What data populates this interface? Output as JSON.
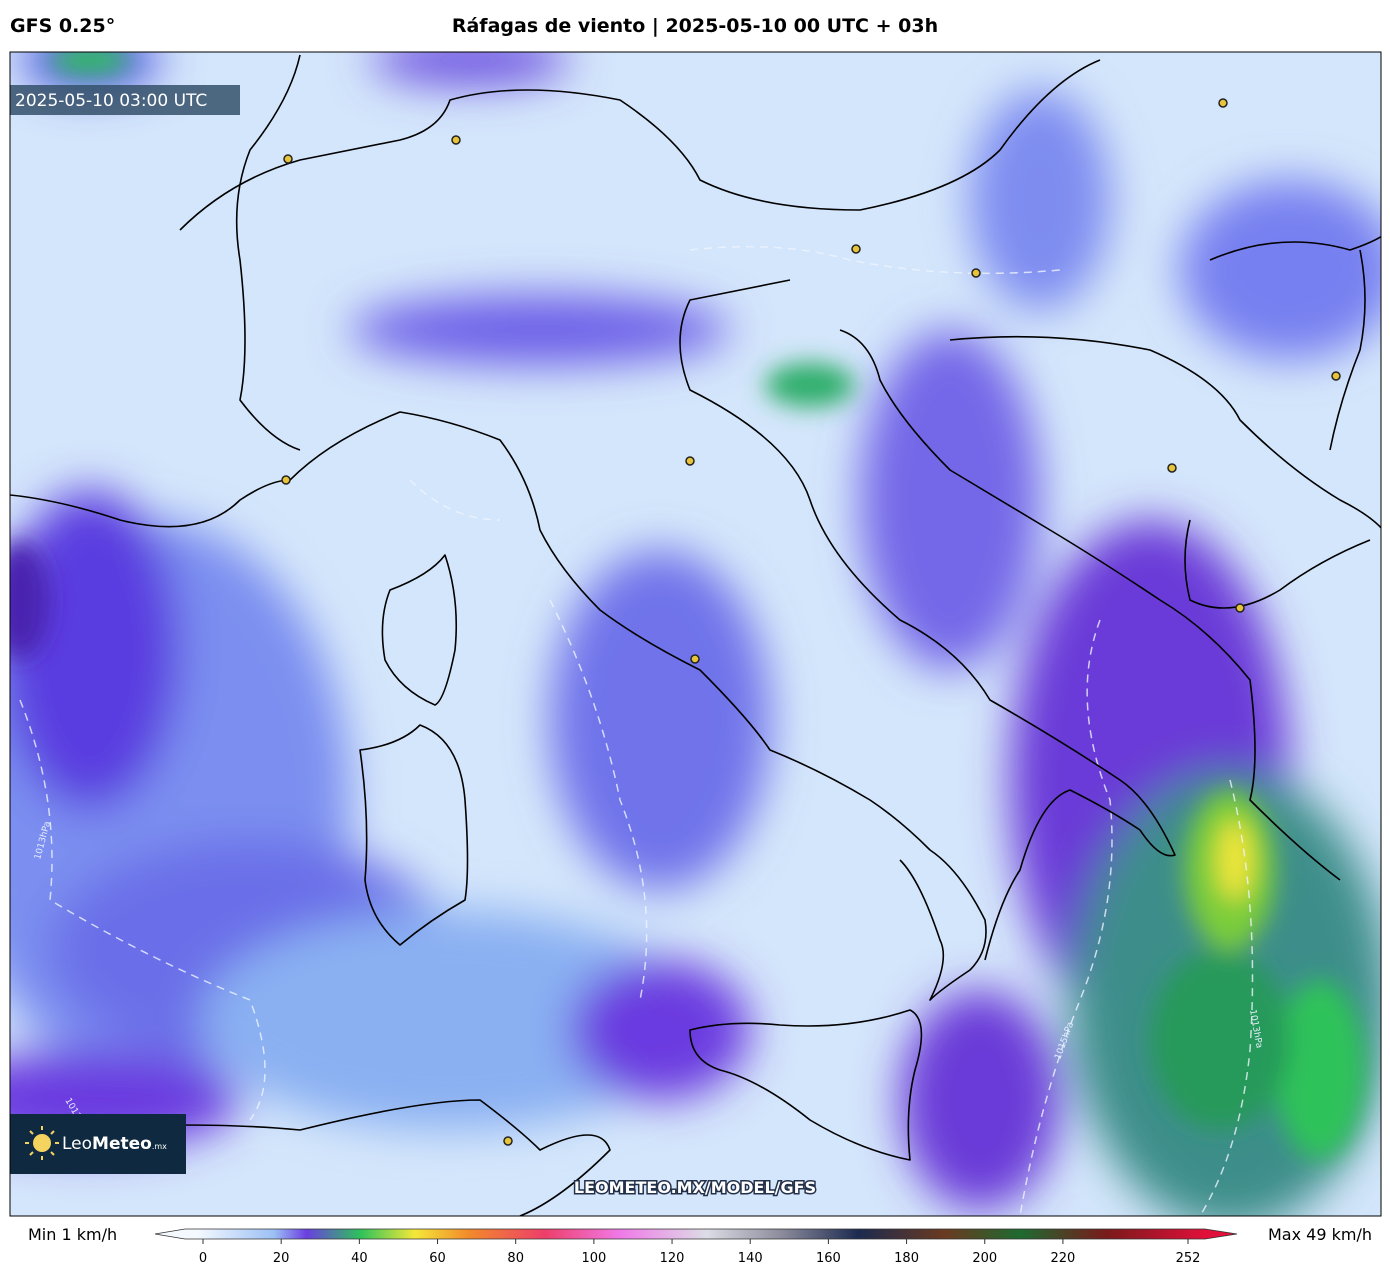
{
  "header": {
    "model": "GFS 0.25°",
    "title": "Ráfagas de viento | 2025-05-10 00 UTC + 03h"
  },
  "map": {
    "timestamp": "2025-05-10 03:00 UTC",
    "watermark": "LEOMETEO.MX/MODEL/GFS",
    "logo": {
      "brand": [
        "Leo",
        "Meteo"
      ],
      "suffix": ".mx"
    },
    "isobars": [
      "1013hPa",
      "1015hPa",
      "1013hPa",
      "1013"
    ]
  },
  "colorbar": {
    "min_label": "Min 1 km/h",
    "max_label": "Max 49 km/h",
    "lim": [
      0,
      252
    ],
    "ticks": [
      0,
      20,
      40,
      60,
      80,
      100,
      120,
      140,
      160,
      180,
      200,
      220,
      252
    ]
  }
}
